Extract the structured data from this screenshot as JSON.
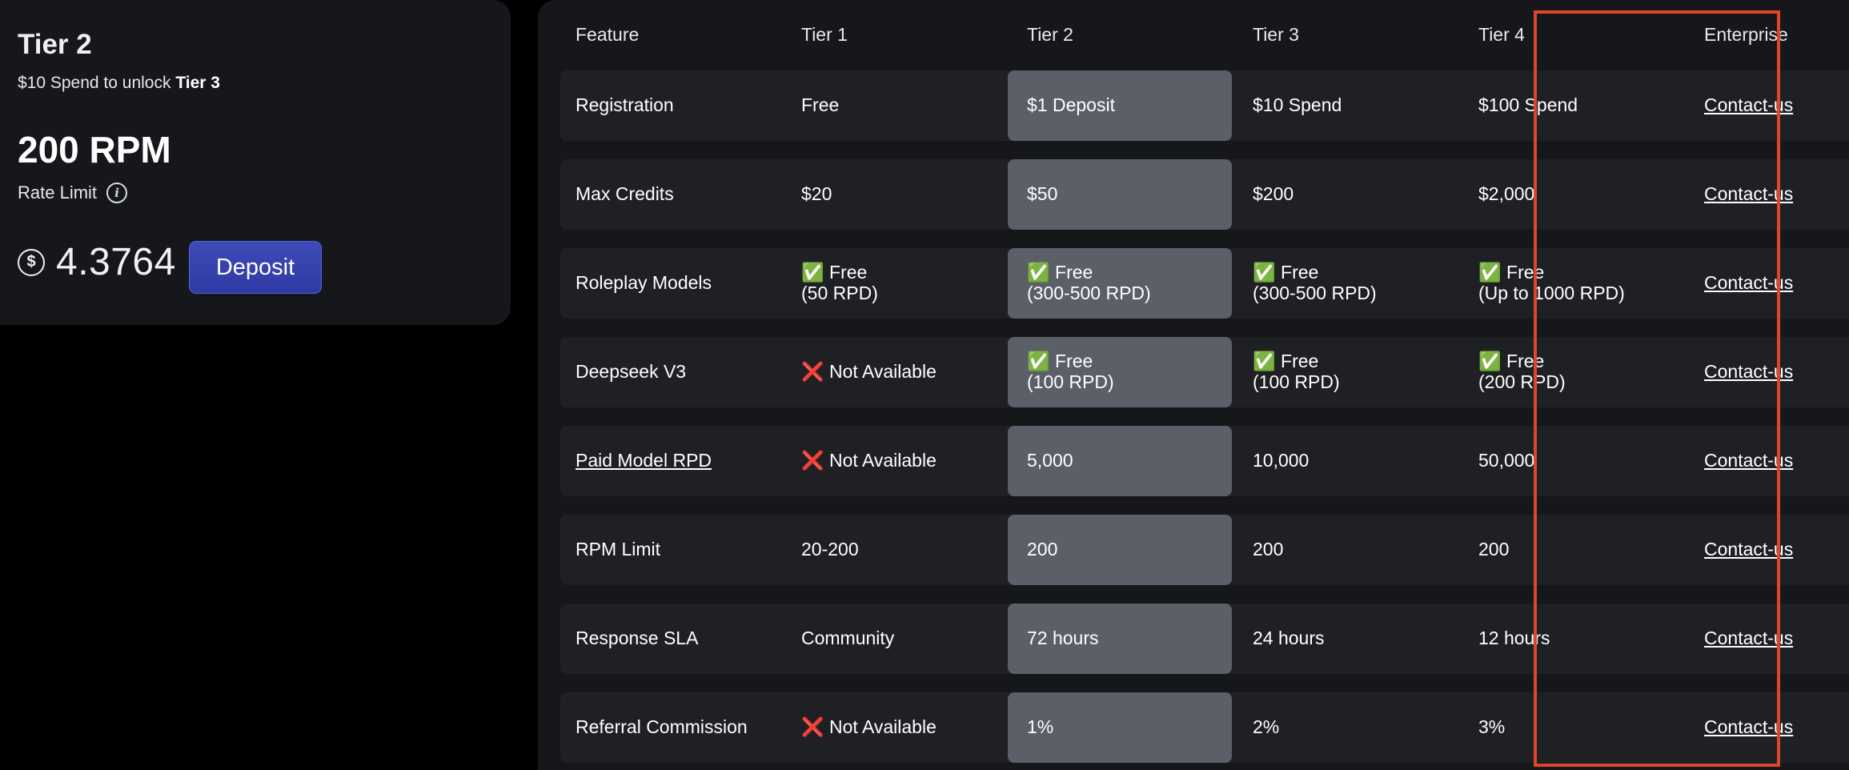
{
  "tier_card": {
    "title": "Tier 2",
    "unlock_prefix": "$10 Spend to unlock ",
    "unlock_target": "Tier 3",
    "rpm": "200 RPM",
    "rate_limit_label": "Rate Limit",
    "balance": "4.3764",
    "deposit_label": "Deposit",
    "info_icon": "i",
    "dollar_icon": "$",
    "accent_color": "#3a46b3"
  },
  "table": {
    "headers": [
      "Feature",
      "Tier 1",
      "Tier 2",
      "Tier 3",
      "Tier 4",
      "Enterprise"
    ],
    "highlight_column": "Tier 2",
    "highlight_color": "#e0452a",
    "rows": [
      {
        "feature": "Registration",
        "feature_link": false,
        "t1": "Free",
        "t2": "$1 Deposit",
        "t3": "$10 Spend",
        "t4": "$100 Spend",
        "ent": "Contact-us"
      },
      {
        "feature": "Max Credits",
        "feature_link": false,
        "t1": "$20",
        "t2": "$50",
        "t3": "$200",
        "t4": "$2,000",
        "ent": "Contact-us"
      },
      {
        "feature": "Roleplay Models",
        "feature_link": false,
        "t1": "✅ Free\n(50 RPD)",
        "t2": "✅ Free\n(300-500 RPD)",
        "t3": "✅ Free\n(300-500 RPD)",
        "t4": "✅ Free\n(Up to 1000 RPD)",
        "ent": "Contact-us"
      },
      {
        "feature": "Deepseek V3",
        "feature_link": false,
        "t1": "❌ Not Available",
        "t2": "✅ Free\n(100 RPD)",
        "t3": "✅ Free\n(100 RPD)",
        "t4": "✅ Free\n(200 RPD)",
        "ent": "Contact-us"
      },
      {
        "feature": "Paid Model RPD",
        "feature_link": true,
        "t1": "❌ Not Available",
        "t2": "5,000",
        "t3": "10,000",
        "t4": "50,000",
        "ent": "Contact-us"
      },
      {
        "feature": "RPM Limit",
        "feature_link": false,
        "t1": "20-200",
        "t2": "200",
        "t3": "200",
        "t4": "200",
        "ent": "Contact-us"
      },
      {
        "feature": "Response SLA",
        "feature_link": false,
        "t1": "Community",
        "t2": "72 hours",
        "t3": "24 hours",
        "t4": "12 hours",
        "ent": "Contact-us"
      },
      {
        "feature": "Referral Commission",
        "feature_link": false,
        "t1": "❌ Not Available",
        "t2": "1%",
        "t3": "2%",
        "t4": "3%",
        "ent": "Contact-us"
      }
    ]
  }
}
